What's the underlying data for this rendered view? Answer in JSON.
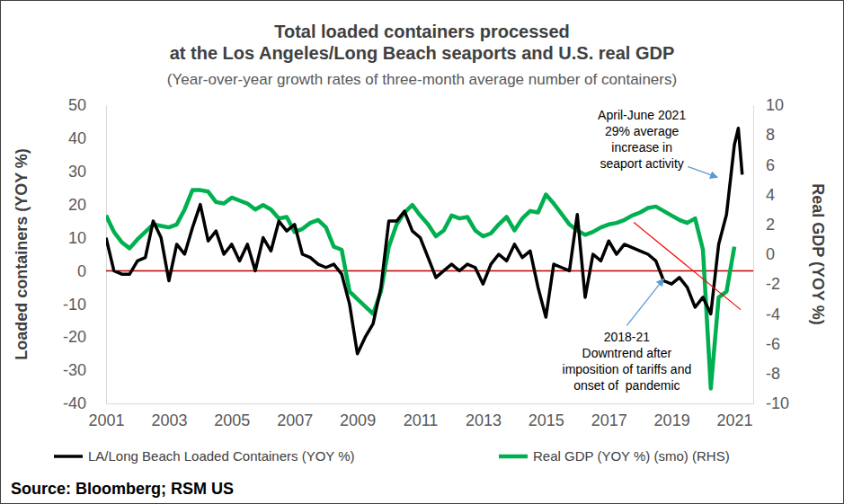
{
  "chart_data": {
    "type": "line",
    "title": [
      "Total loaded containers processed",
      "at the Los Angeles/Long Beach seaports and U.S. real GDP"
    ],
    "subtitle": "(Year-over-year growth rates of three-month average number of containers)",
    "y_label": "Loaded containers (YOY %)",
    "y2_label": "Real GDP (YOY %)",
    "source": "Source: Bloomberg; RSM US",
    "x": [
      2001,
      2001.25,
      2001.5,
      2001.75,
      2002,
      2002.25,
      2002.5,
      2002.75,
      2003,
      2003.25,
      2003.5,
      2003.75,
      2004,
      2004.25,
      2004.5,
      2004.75,
      2005,
      2005.25,
      2005.5,
      2005.75,
      2006,
      2006.25,
      2006.5,
      2006.75,
      2007,
      2007.25,
      2007.5,
      2007.75,
      2008,
      2008.25,
      2008.5,
      2008.75,
      2009,
      2009.25,
      2009.5,
      2009.75,
      2010,
      2010.25,
      2010.5,
      2010.75,
      2011,
      2011.25,
      2011.5,
      2011.75,
      2012,
      2012.25,
      2012.5,
      2012.75,
      2013,
      2013.25,
      2013.5,
      2013.75,
      2014,
      2014.25,
      2014.5,
      2014.75,
      2015,
      2015.25,
      2015.5,
      2015.75,
      2016,
      2016.25,
      2016.5,
      2016.75,
      2017,
      2017.25,
      2017.5,
      2017.75,
      2018,
      2018.25,
      2018.5,
      2018.75,
      2019,
      2019.25,
      2019.5,
      2019.75,
      2020,
      2020.25,
      2020.5,
      2020.75,
      2021,
      2021.125,
      2021.25
    ],
    "series": [
      {
        "name": "LA/Long Beach Loaded Containers (YOY %)",
        "color": "#000000",
        "axis": "y",
        "values": [
          10,
          0,
          -1,
          -1,
          3,
          4,
          15,
          10,
          -3,
          8,
          5,
          13,
          20,
          9,
          12,
          5,
          8,
          3,
          8,
          0,
          10,
          6,
          15,
          12,
          14,
          5,
          4,
          2,
          1,
          2,
          -1,
          -10,
          -25,
          -20,
          -16,
          -5,
          15,
          15,
          18,
          12,
          10,
          4,
          -2,
          0,
          2,
          0,
          2,
          1,
          -4,
          2,
          5,
          3,
          8,
          4,
          6,
          -5,
          -14,
          2,
          1,
          0,
          17,
          -8,
          5,
          3,
          9,
          5,
          8,
          7,
          6,
          5,
          3,
          -3,
          -4,
          -2,
          -5,
          -11,
          -8,
          -13,
          8,
          17,
          38,
          43,
          29
        ]
      },
      {
        "name": "Real GDP (YOY %) (smo) (RHS)",
        "color": "#00b050",
        "axis": "y2",
        "values": [
          2.6,
          1.5,
          0.8,
          0.4,
          1.0,
          1.5,
          2.0,
          1.9,
          1.8,
          2.0,
          3.0,
          4.3,
          4.3,
          4.2,
          3.5,
          3.4,
          3.8,
          3.6,
          3.4,
          3.0,
          3.3,
          3.0,
          2.4,
          2.5,
          1.5,
          1.7,
          2.1,
          2.3,
          1.8,
          0.5,
          0.3,
          -2.5,
          -3.0,
          -3.5,
          -4.0,
          -2.5,
          0.5,
          2.0,
          2.8,
          3.3,
          2.6,
          2.0,
          1.2,
          1.6,
          2.6,
          2.4,
          2.5,
          1.6,
          1.2,
          1.4,
          2.0,
          2.5,
          1.6,
          2.4,
          2.9,
          2.8,
          4.0,
          3.4,
          2.7,
          2.0,
          1.6,
          1.3,
          1.5,
          1.8,
          2.0,
          2.1,
          2.3,
          2.6,
          2.8,
          3.1,
          3.2,
          2.9,
          2.6,
          2.3,
          2.1,
          2.4,
          0.3,
          -9.0,
          -2.9,
          -2.5,
          0.5,
          null,
          null
        ]
      }
    ],
    "xlim": [
      2001,
      2021.6
    ],
    "xticks": [
      2001,
      2003,
      2005,
      2007,
      2009,
      2011,
      2013,
      2015,
      2017,
      2019,
      2021
    ],
    "ylim": [
      -40,
      50
    ],
    "yticks": [
      -40,
      -30,
      -20,
      -10,
      0,
      10,
      20,
      30,
      40,
      50
    ],
    "y2lim": [
      -10,
      10
    ],
    "y2ticks": [
      -10,
      -8,
      -6,
      -4,
      -2,
      0,
      2,
      4,
      6,
      8,
      10
    ],
    "grid": false,
    "legend": "bottom",
    "reference_line": {
      "value": 0,
      "color": "#c00000"
    },
    "trend_line": {
      "x": [
        2017.8,
        2021.2
      ],
      "y": [
        14.6,
        -11.7
      ],
      "color": "#ff0000"
    },
    "annotations": [
      {
        "text": [
          "April-June 2021",
          "29% average",
          "increase in",
          "seaport activity"
        ],
        "x": 2020.46,
        "y": 28.2
      },
      {
        "text": [
          "2018-21",
          "Downtrend after",
          "imposition of tariffs and",
          "onset of  pandemic"
        ],
        "x": 2018.75,
        "y": -2.4
      }
    ]
  }
}
